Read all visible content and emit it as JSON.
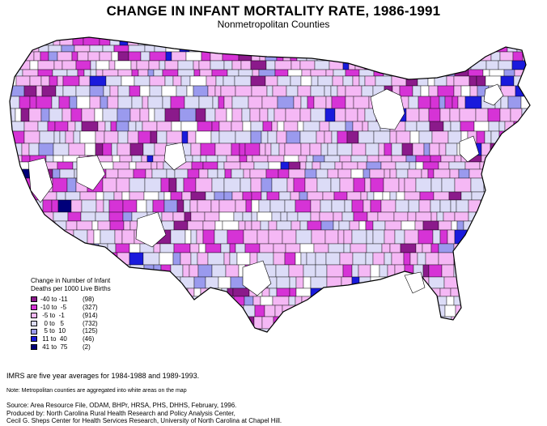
{
  "title": "CHANGE IN INFANT MORTALITY RATE, 1986-1991",
  "subtitle": "Nonmetropolitan Counties",
  "legend": {
    "title": "Change in Number of Infant Deaths per 1000 Live Births",
    "title_line1": "Change in Number of Infant",
    "title_line2": "Deaths per 1000 Live Births",
    "classes": [
      {
        "range": "-40 to -11",
        "count": "(98)",
        "color": "#8b1a8b"
      },
      {
        "range": "-10 to  -5",
        "count": "(327)",
        "color": "#d633d6"
      },
      {
        "range": " -5 to  -1",
        "count": "(914)",
        "color": "#f5b8f5"
      },
      {
        "range": "  0 to   5",
        "count": "(732)",
        "color": "#dcdcf7"
      },
      {
        "range": "  5 to  10",
        "count": "(125)",
        "color": "#9a9aee"
      },
      {
        "range": " 11 to  40",
        "count": "(46)",
        "color": "#1a1adc"
      },
      {
        "range": " 41 to  75",
        "count": "(2)",
        "color": "#00007a"
      }
    ]
  },
  "notes": {
    "averages": "IMRS are five year averages for 1984-1988 and 1989-1993.",
    "metro": "Note: Metropolitan counties are aggregated into white areas on the map"
  },
  "source": {
    "line1": "Source: Area Resource File, ODAM, BHPr, HRSA, PHS, DHHS, February, 1996.",
    "line2": "Produced by: North Carolina Rural Health Research and Policy Analysis Center,",
    "line3": "Cecil G. Sheps Center for Health Services Research, University of North Carolina at Chapel Hill."
  },
  "colors": {
    "metro_white": "#ffffff",
    "border": "#000000"
  }
}
